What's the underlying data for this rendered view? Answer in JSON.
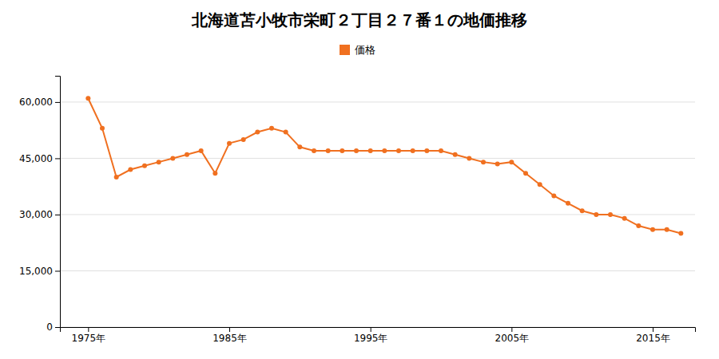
{
  "chart_data": {
    "type": "line",
    "title": "北海道苫小牧市栄町２丁目２７番１の地価推移",
    "x": [
      1975,
      1976,
      1977,
      1978,
      1979,
      1980,
      1981,
      1982,
      1983,
      1984,
      1985,
      1986,
      1987,
      1988,
      1989,
      1990,
      1991,
      1992,
      1993,
      1994,
      1995,
      1996,
      1997,
      1998,
      1999,
      2000,
      2001,
      2002,
      2003,
      2004,
      2005,
      2006,
      2007,
      2008,
      2009,
      2010,
      2011,
      2012,
      2013,
      2014,
      2015,
      2016,
      2017
    ],
    "series": [
      {
        "name": "価格",
        "color": "#f07020",
        "marker": "circle",
        "values": [
          61000,
          53000,
          40000,
          42000,
          43000,
          44000,
          45000,
          46000,
          47000,
          41000,
          49000,
          50000,
          52000,
          53000,
          52000,
          48000,
          47000,
          47000,
          47000,
          47000,
          47000,
          47000,
          47000,
          47000,
          47000,
          47000,
          46000,
          45000,
          44000,
          43500,
          44000,
          41000,
          38000,
          35000,
          33000,
          31000,
          30000,
          30000,
          29000,
          27000,
          26000,
          26000,
          25000
        ]
      }
    ],
    "xlim": [
      1973,
      2018
    ],
    "xticks": [
      {
        "value": 1975,
        "label": "1975年"
      },
      {
        "value": 1985,
        "label": "1985年"
      },
      {
        "value": 1995,
        "label": "1995年"
      },
      {
        "value": 2005,
        "label": "2005年"
      },
      {
        "value": 2015,
        "label": "2015年"
      }
    ],
    "ylim": [
      0,
      67000
    ],
    "yticks": [
      0,
      {
        "value": 15000,
        "label": "15,000"
      },
      {
        "value": 30000,
        "label": "30,000"
      },
      {
        "value": 45000,
        "label": "45,000"
      },
      {
        "value": 60000,
        "label": "60,000"
      }
    ],
    "grid": true,
    "legend": "top"
  }
}
